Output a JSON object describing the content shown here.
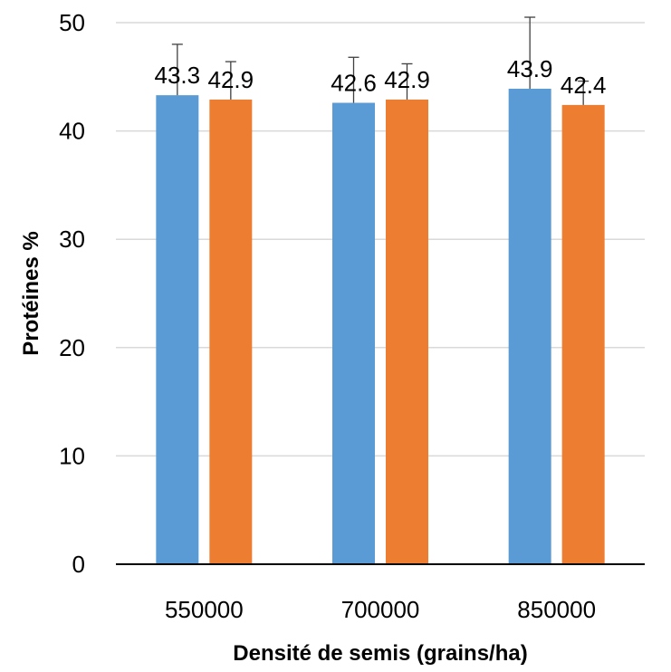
{
  "chart_data": {
    "type": "bar",
    "title": "",
    "xlabel": "Densité de semis (grains/ha)",
    "ylabel": "Protéines %",
    "categories": [
      "550000",
      "700000",
      "850000"
    ],
    "ylim": [
      0,
      50
    ],
    "yticks": [
      0,
      10,
      20,
      30,
      40,
      50
    ],
    "grid": true,
    "legend": "none",
    "series": [
      {
        "color": "#5b9bd5",
        "values": [
          43.3,
          42.6,
          43.9
        ],
        "labels": [
          "43.3",
          "42.6",
          "43.9"
        ],
        "errors": [
          4.7,
          4.2,
          6.6
        ]
      },
      {
        "color": "#ed7d31",
        "values": [
          42.9,
          42.9,
          42.4
        ],
        "labels": [
          "42.9",
          "42.9",
          "42.4"
        ],
        "errors": [
          3.5,
          3.3,
          2.2
        ]
      }
    ]
  }
}
